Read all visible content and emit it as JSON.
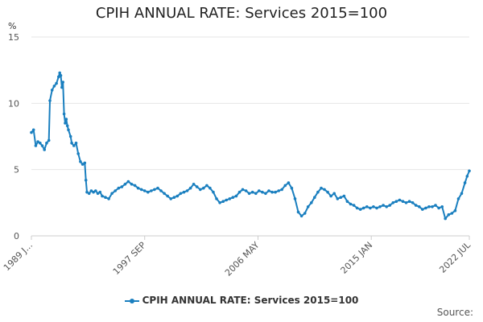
{
  "chart_data": {
    "type": "line",
    "title": "CPIH ANNUAL RATE: Services 2015=100",
    "ylabel": "%",
    "xlabel": "",
    "ylim": [
      0,
      15
    ],
    "y_ticks": [
      "0",
      "5",
      "10",
      "15"
    ],
    "x_range": [
      "1989 JAN",
      "2022 JUL"
    ],
    "x_tick_labels": [
      "1989 J...",
      "1997 SEP",
      "2006 MAY",
      "2015 JAN",
      "2022 JUL"
    ],
    "x_tick_dates": [
      "1989-01",
      "1997-09",
      "2006-05",
      "2015-01",
      "2022-07"
    ],
    "grid": true,
    "legend_position": "bottom",
    "colors": {
      "series": "#1a7fbf",
      "grid": "#e6e6e6",
      "axis": "#cccccc"
    },
    "series": [
      {
        "name": "CPIH ANNUAL RATE: Services 2015=100",
        "points": [
          [
            "1989-01",
            7.8
          ],
          [
            "1989-03",
            8.0
          ],
          [
            "1989-05",
            6.8
          ],
          [
            "1989-07",
            7.1
          ],
          [
            "1989-09",
            7.0
          ],
          [
            "1989-11",
            6.8
          ],
          [
            "1990-01",
            6.5
          ],
          [
            "1990-03",
            7.0
          ],
          [
            "1990-05",
            7.2
          ],
          [
            "1990-06",
            10.2
          ],
          [
            "1990-08",
            11.0
          ],
          [
            "1990-10",
            11.3
          ],
          [
            "1990-12",
            11.5
          ],
          [
            "1991-02",
            12.0
          ],
          [
            "1991-03",
            12.3
          ],
          [
            "1991-04",
            12.1
          ],
          [
            "1991-05",
            11.2
          ],
          [
            "1991-06",
            11.6
          ],
          [
            "1991-07",
            9.2
          ],
          [
            "1991-08",
            8.5
          ],
          [
            "1991-09",
            8.8
          ],
          [
            "1991-10",
            8.3
          ],
          [
            "1991-11",
            8.0
          ],
          [
            "1992-01",
            7.5
          ],
          [
            "1992-02",
            7.0
          ],
          [
            "1992-04",
            6.8
          ],
          [
            "1992-06",
            7.0
          ],
          [
            "1992-08",
            6.2
          ],
          [
            "1992-10",
            5.6
          ],
          [
            "1992-12",
            5.4
          ],
          [
            "1993-02",
            5.5
          ],
          [
            "1993-03",
            4.2
          ],
          [
            "1993-04",
            3.3
          ],
          [
            "1993-06",
            3.2
          ],
          [
            "1993-08",
            3.4
          ],
          [
            "1993-10",
            3.3
          ],
          [
            "1993-12",
            3.4
          ],
          [
            "1994-02",
            3.2
          ],
          [
            "1994-04",
            3.3
          ],
          [
            "1994-06",
            3.0
          ],
          [
            "1994-09",
            2.9
          ],
          [
            "1994-12",
            2.8
          ],
          [
            "1995-03",
            3.2
          ],
          [
            "1995-06",
            3.4
          ],
          [
            "1995-09",
            3.6
          ],
          [
            "1995-12",
            3.7
          ],
          [
            "1996-03",
            3.9
          ],
          [
            "1996-06",
            4.1
          ],
          [
            "1996-09",
            3.9
          ],
          [
            "1996-12",
            3.8
          ],
          [
            "1997-03",
            3.6
          ],
          [
            "1997-06",
            3.5
          ],
          [
            "1997-09",
            3.4
          ],
          [
            "1997-12",
            3.3
          ],
          [
            "1998-03",
            3.4
          ],
          [
            "1998-06",
            3.5
          ],
          [
            "1998-09",
            3.6
          ],
          [
            "1998-12",
            3.4
          ],
          [
            "1999-03",
            3.2
          ],
          [
            "1999-06",
            3.0
          ],
          [
            "1999-09",
            2.8
          ],
          [
            "1999-12",
            2.9
          ],
          [
            "2000-03",
            3.0
          ],
          [
            "2000-06",
            3.2
          ],
          [
            "2000-09",
            3.3
          ],
          [
            "2000-12",
            3.4
          ],
          [
            "2001-03",
            3.6
          ],
          [
            "2001-06",
            3.9
          ],
          [
            "2001-09",
            3.7
          ],
          [
            "2001-12",
            3.5
          ],
          [
            "2002-03",
            3.6
          ],
          [
            "2002-06",
            3.8
          ],
          [
            "2002-09",
            3.6
          ],
          [
            "2002-12",
            3.3
          ],
          [
            "2003-03",
            2.8
          ],
          [
            "2003-06",
            2.5
          ],
          [
            "2003-09",
            2.6
          ],
          [
            "2003-12",
            2.7
          ],
          [
            "2004-03",
            2.8
          ],
          [
            "2004-06",
            2.9
          ],
          [
            "2004-09",
            3.0
          ],
          [
            "2004-12",
            3.3
          ],
          [
            "2005-03",
            3.5
          ],
          [
            "2005-06",
            3.4
          ],
          [
            "2005-09",
            3.2
          ],
          [
            "2005-12",
            3.3
          ],
          [
            "2006-03",
            3.2
          ],
          [
            "2006-06",
            3.4
          ],
          [
            "2006-09",
            3.3
          ],
          [
            "2006-12",
            3.2
          ],
          [
            "2007-03",
            3.4
          ],
          [
            "2007-06",
            3.3
          ],
          [
            "2007-09",
            3.3
          ],
          [
            "2007-12",
            3.4
          ],
          [
            "2008-03",
            3.5
          ],
          [
            "2008-06",
            3.8
          ],
          [
            "2008-09",
            4.0
          ],
          [
            "2008-12",
            3.6
          ],
          [
            "2009-03",
            2.8
          ],
          [
            "2009-06",
            1.8
          ],
          [
            "2009-09",
            1.5
          ],
          [
            "2009-12",
            1.7
          ],
          [
            "2010-03",
            2.2
          ],
          [
            "2010-06",
            2.5
          ],
          [
            "2010-09",
            2.9
          ],
          [
            "2010-12",
            3.3
          ],
          [
            "2011-03",
            3.6
          ],
          [
            "2011-06",
            3.5
          ],
          [
            "2011-09",
            3.3
          ],
          [
            "2011-12",
            3.0
          ],
          [
            "2012-03",
            3.2
          ],
          [
            "2012-06",
            2.8
          ],
          [
            "2012-09",
            2.9
          ],
          [
            "2012-12",
            3.0
          ],
          [
            "2013-03",
            2.6
          ],
          [
            "2013-06",
            2.4
          ],
          [
            "2013-09",
            2.3
          ],
          [
            "2013-12",
            2.1
          ],
          [
            "2014-03",
            2.0
          ],
          [
            "2014-06",
            2.1
          ],
          [
            "2014-09",
            2.2
          ],
          [
            "2014-12",
            2.1
          ],
          [
            "2015-03",
            2.2
          ],
          [
            "2015-06",
            2.1
          ],
          [
            "2015-09",
            2.2
          ],
          [
            "2015-12",
            2.3
          ],
          [
            "2016-03",
            2.2
          ],
          [
            "2016-06",
            2.3
          ],
          [
            "2016-09",
            2.5
          ],
          [
            "2016-12",
            2.6
          ],
          [
            "2017-03",
            2.7
          ],
          [
            "2017-06",
            2.6
          ],
          [
            "2017-09",
            2.5
          ],
          [
            "2017-12",
            2.6
          ],
          [
            "2018-03",
            2.5
          ],
          [
            "2018-06",
            2.3
          ],
          [
            "2018-09",
            2.2
          ],
          [
            "2018-12",
            2.0
          ],
          [
            "2019-03",
            2.1
          ],
          [
            "2019-06",
            2.2
          ],
          [
            "2019-09",
            2.2
          ],
          [
            "2019-12",
            2.3
          ],
          [
            "2020-03",
            2.1
          ],
          [
            "2020-06",
            2.2
          ],
          [
            "2020-09",
            1.3
          ],
          [
            "2020-12",
            1.6
          ],
          [
            "2021-03",
            1.7
          ],
          [
            "2021-06",
            1.9
          ],
          [
            "2021-09",
            2.8
          ],
          [
            "2021-12",
            3.2
          ],
          [
            "2022-03",
            4.0
          ],
          [
            "2022-05",
            4.5
          ],
          [
            "2022-07",
            4.9
          ]
        ]
      }
    ]
  },
  "legend": {
    "label": "CPIH ANNUAL RATE: Services 2015=100"
  },
  "source": {
    "label": "Source:"
  }
}
